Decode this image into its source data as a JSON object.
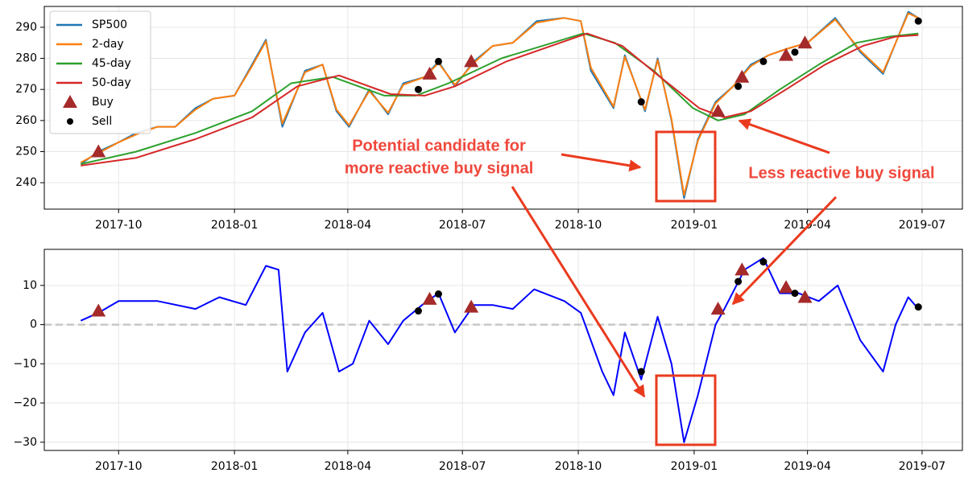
{
  "chart_data": [
    {
      "type": "line",
      "xlim": [
        "2017-08-03",
        "2019-08-02"
      ],
      "xticks": [
        {
          "value": "2017-10-01",
          "label": "2017-10"
        },
        {
          "value": "2018-01-01",
          "label": "2018-01"
        },
        {
          "value": "2018-04-01",
          "label": "2018-04"
        },
        {
          "value": "2018-07-01",
          "label": "2018-07"
        },
        {
          "value": "2018-10-01",
          "label": "2018-10"
        },
        {
          "value": "2019-01-01",
          "label": "2019-01"
        },
        {
          "value": "2019-04-01",
          "label": "2019-04"
        },
        {
          "value": "2019-07-01",
          "label": "2019-07"
        }
      ],
      "ylim": [
        231.5,
        296.7
      ],
      "yticks": [
        240,
        250,
        260,
        270,
        280,
        290
      ],
      "grid": true,
      "legend": "upper left",
      "series": [
        {
          "name": "SP500",
          "color": "#1f77b4",
          "x": [
            "2017-09-01",
            "2017-09-15",
            "2017-10-01",
            "2017-10-15",
            "2017-11-01",
            "2017-11-15",
            "2017-12-01",
            "2017-12-15",
            "2018-01-01",
            "2018-01-15",
            "2018-01-26",
            "2018-02-08",
            "2018-02-26",
            "2018-03-12",
            "2018-03-23",
            "2018-04-02",
            "2018-04-18",
            "2018-05-03",
            "2018-05-15",
            "2018-06-01",
            "2018-06-12",
            "2018-06-25",
            "2018-07-10",
            "2018-07-25",
            "2018-08-10",
            "2018-08-29",
            "2018-09-20",
            "2018-10-03",
            "2018-10-11",
            "2018-10-29",
            "2018-11-07",
            "2018-11-23",
            "2018-12-03",
            "2018-12-14",
            "2018-12-24",
            "2019-01-04",
            "2019-01-18",
            "2019-02-01",
            "2019-02-15",
            "2019-03-01",
            "2019-03-15",
            "2019-04-01",
            "2019-04-23",
            "2019-05-13",
            "2019-05-31",
            "2019-06-20",
            "2019-06-28"
          ],
          "values": [
            246,
            250,
            253,
            256,
            258,
            258,
            264,
            267,
            268,
            278,
            286,
            258,
            276,
            278,
            263,
            258,
            270,
            262,
            272,
            274,
            279,
            271,
            279,
            284,
            285,
            292,
            293,
            292,
            276,
            264,
            281,
            263,
            280,
            260,
            235,
            254,
            266,
            271,
            278,
            281,
            283,
            285,
            293,
            282,
            275,
            295,
            293
          ]
        },
        {
          "name": "2-day",
          "color": "#ff7f0e",
          "x": [
            "2017-09-01",
            "2017-09-15",
            "2017-10-01",
            "2017-10-15",
            "2017-11-01",
            "2017-11-15",
            "2017-12-01",
            "2017-12-15",
            "2018-01-01",
            "2018-01-15",
            "2018-01-26",
            "2018-02-08",
            "2018-02-26",
            "2018-03-12",
            "2018-03-23",
            "2018-04-02",
            "2018-04-18",
            "2018-05-03",
            "2018-05-15",
            "2018-06-01",
            "2018-06-12",
            "2018-06-25",
            "2018-07-10",
            "2018-07-25",
            "2018-08-10",
            "2018-08-29",
            "2018-09-20",
            "2018-10-03",
            "2018-10-11",
            "2018-10-29",
            "2018-11-07",
            "2018-11-23",
            "2018-12-03",
            "2018-12-14",
            "2018-12-24",
            "2019-01-04",
            "2019-01-18",
            "2019-02-01",
            "2019-02-15",
            "2019-03-01",
            "2019-03-15",
            "2019-04-01",
            "2019-04-23",
            "2019-05-13",
            "2019-05-31",
            "2019-06-20",
            "2019-06-28"
          ],
          "values": [
            246.5,
            249.5,
            253,
            255.5,
            258,
            258,
            263.5,
            267,
            268,
            277.5,
            285.5,
            259,
            275.5,
            278,
            263.5,
            258.5,
            269.5,
            262.5,
            271.5,
            274,
            278.5,
            271.5,
            278.5,
            284,
            285,
            291.5,
            293,
            292,
            277,
            264.5,
            280.5,
            263.5,
            279.5,
            260.5,
            236,
            253.5,
            265.5,
            271,
            277.5,
            281,
            283,
            285,
            292.5,
            282.5,
            275.5,
            294.5,
            293
          ]
        },
        {
          "name": "45-day",
          "color": "#2ca02c",
          "x": [
            "2017-09-01",
            "2017-10-15",
            "2017-12-01",
            "2018-01-15",
            "2018-02-15",
            "2018-03-20",
            "2018-04-30",
            "2018-05-25",
            "2018-06-20",
            "2018-08-01",
            "2018-10-05",
            "2018-10-30",
            "2018-11-30",
            "2018-12-31",
            "2019-01-20",
            "2019-02-10",
            "2019-03-10",
            "2019-04-10",
            "2019-05-10",
            "2019-06-05",
            "2019-06-28"
          ],
          "values": [
            246,
            250,
            256,
            263,
            272,
            274,
            268,
            268,
            272,
            280,
            288,
            285,
            276,
            264,
            260,
            262,
            270,
            278,
            285,
            287,
            288
          ]
        },
        {
          "name": "50-day",
          "color": "#d62728",
          "x": [
            "2017-09-01",
            "2017-10-15",
            "2017-12-01",
            "2018-01-15",
            "2018-02-20",
            "2018-03-25",
            "2018-05-05",
            "2018-06-01",
            "2018-06-25",
            "2018-08-05",
            "2018-10-08",
            "2018-11-05",
            "2018-12-05",
            "2019-01-05",
            "2019-01-25",
            "2019-02-15",
            "2019-03-15",
            "2019-04-15",
            "2019-05-15",
            "2019-06-10",
            "2019-06-28"
          ],
          "values": [
            245.5,
            248,
            254,
            261,
            271,
            274.5,
            268.5,
            268,
            271,
            279,
            288,
            284,
            274,
            264,
            261,
            263,
            270,
            278,
            284,
            287,
            287.5
          ]
        },
        {
          "name": "Buy",
          "color": "#a52a2a",
          "marker": "triangle",
          "x": [
            "2017-09-15",
            "2018-06-05",
            "2018-07-08",
            "2019-01-20",
            "2019-02-08",
            "2019-03-15",
            "2019-03-30"
          ],
          "values": [
            250,
            275,
            279,
            263,
            274,
            281,
            285
          ]
        },
        {
          "name": "Sell",
          "color": "#000000",
          "marker": "circle",
          "x": [
            "2018-05-27",
            "2018-06-12",
            "2018-11-20",
            "2019-02-05",
            "2019-02-25",
            "2019-03-22",
            "2019-06-28"
          ],
          "values": [
            270,
            279,
            266,
            271,
            279,
            282,
            292
          ]
        }
      ],
      "annotations": [
        [
          "Potential candidate for",
          "more reactive buy signal"
        ],
        [
          "Less reactive buy signal"
        ]
      ]
    },
    {
      "type": "line",
      "xlim": [
        "2017-08-03",
        "2019-08-02"
      ],
      "xticks": [
        {
          "value": "2017-10-01",
          "label": "2017-10"
        },
        {
          "value": "2018-01-01",
          "label": "2018-01"
        },
        {
          "value": "2018-04-01",
          "label": "2018-04"
        },
        {
          "value": "2018-07-01",
          "label": "2018-07"
        },
        {
          "value": "2018-10-01",
          "label": "2018-10"
        },
        {
          "value": "2019-01-01",
          "label": "2019-01"
        },
        {
          "value": "2019-04-01",
          "label": "2019-04"
        },
        {
          "value": "2019-07-01",
          "label": "2019-07"
        }
      ],
      "ylim": [
        -32.1,
        19.2
      ],
      "yticks": [
        {
          "value": -30,
          "label": "−30"
        },
        {
          "value": -20,
          "label": "−20"
        },
        {
          "value": -10,
          "label": "−10"
        },
        0,
        10
      ],
      "grid": true,
      "hline": 0,
      "series": [
        {
          "color": "#0000ff",
          "x": [
            "2017-09-01",
            "2017-09-15",
            "2017-10-01",
            "2017-11-01",
            "2017-12-01",
            "2017-12-20",
            "2018-01-10",
            "2018-01-26",
            "2018-02-05",
            "2018-02-12",
            "2018-02-26",
            "2018-03-12",
            "2018-03-25",
            "2018-04-05",
            "2018-04-18",
            "2018-05-03",
            "2018-05-15",
            "2018-05-30",
            "2018-06-12",
            "2018-06-25",
            "2018-07-10",
            "2018-07-25",
            "2018-08-10",
            "2018-08-27",
            "2018-09-20",
            "2018-10-03",
            "2018-10-20",
            "2018-10-29",
            "2018-11-07",
            "2018-11-20",
            "2018-12-03",
            "2018-12-14",
            "2018-12-24",
            "2019-01-04",
            "2019-01-18",
            "2019-01-25",
            "2019-02-10",
            "2019-02-25",
            "2019-03-10",
            "2019-03-25",
            "2019-04-10",
            "2019-04-25",
            "2019-05-13",
            "2019-05-31",
            "2019-06-10",
            "2019-06-20",
            "2019-06-28"
          ],
          "values": [
            1,
            3,
            6,
            6,
            4,
            7,
            5,
            15,
            14,
            -12,
            -2,
            3,
            -12,
            -10,
            1,
            -5,
            1,
            5,
            8,
            -2,
            5,
            5,
            4,
            9,
            6,
            3,
            -12,
            -18,
            -2,
            -14,
            2,
            -10,
            -30,
            -18,
            0,
            4,
            14,
            17,
            8,
            8,
            6,
            10,
            -4,
            -12,
            0,
            7,
            4
          ]
        },
        {
          "color": "#a52a2a",
          "marker": "triangle",
          "x": [
            "2017-09-15",
            "2018-06-05",
            "2018-07-08",
            "2019-01-20",
            "2019-02-08",
            "2019-03-15",
            "2019-03-30"
          ],
          "values": [
            3.5,
            6.5,
            4.5,
            4,
            14,
            9.5,
            7
          ]
        },
        {
          "color": "#000000",
          "marker": "circle",
          "x": [
            "2018-05-27",
            "2018-06-12",
            "2018-11-20",
            "2019-02-05",
            "2019-02-25",
            "2019-03-22",
            "2019-06-28"
          ],
          "values": [
            3.5,
            7.8,
            -12,
            11,
            16,
            8,
            4.5
          ]
        }
      ]
    }
  ]
}
